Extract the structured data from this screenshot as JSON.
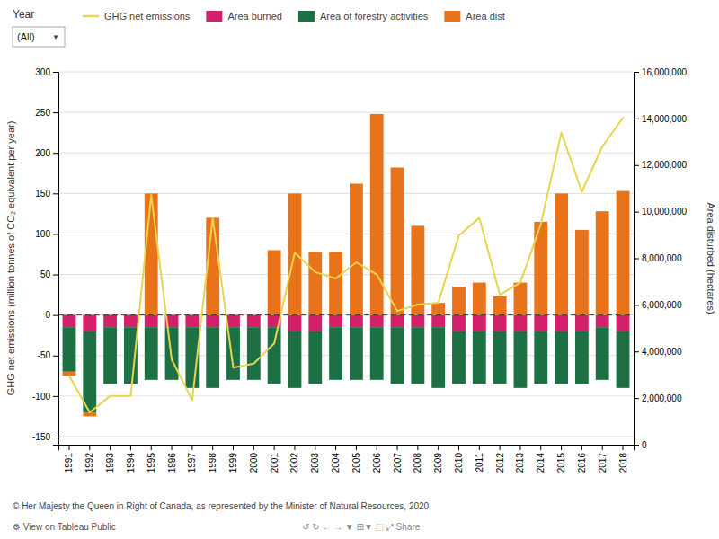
{
  "chart_data": {
    "type": "bar",
    "stacked": true,
    "grid": true,
    "legend": "top-left",
    "categories": [
      "1991",
      "1992",
      "1993",
      "1994",
      "1995",
      "1996",
      "1997",
      "1998",
      "1999",
      "2000",
      "2001",
      "2002",
      "2003",
      "2004",
      "2005",
      "2006",
      "2007",
      "2008",
      "2009",
      "2010",
      "2011",
      "2012",
      "2013",
      "2014",
      "2015",
      "2016",
      "2017",
      "2018"
    ],
    "series": [
      {
        "name": "GHG net emissions",
        "type": "line",
        "color": "#e8d44d",
        "values": [
          -75,
          -120,
          -100,
          -100,
          148,
          -55,
          -105,
          120,
          -65,
          -60,
          -35,
          77,
          53,
          45,
          65,
          50,
          5,
          13,
          15,
          98,
          120,
          25,
          40,
          112,
          225,
          152,
          208,
          243
        ]
      },
      {
        "name": "Area burned",
        "type": "bar",
        "color": "#d41f6b",
        "values": [
          -15,
          -20,
          -15,
          -15,
          -15,
          -15,
          -15,
          -15,
          -15,
          -15,
          -15,
          -20,
          -20,
          -15,
          -15,
          -15,
          -15,
          -15,
          -15,
          -20,
          -20,
          -20,
          -20,
          -20,
          -20,
          -20,
          -15,
          -20
        ]
      },
      {
        "name": "Area of forestry activities",
        "type": "bar",
        "color": "#1d7044",
        "values": [
          -55,
          -100,
          -70,
          -70,
          -65,
          -65,
          -75,
          -75,
          -65,
          -65,
          -70,
          -70,
          -65,
          -65,
          -65,
          -65,
          -70,
          -70,
          -75,
          -65,
          -65,
          -65,
          -70,
          -65,
          -65,
          -65,
          -65,
          -70
        ]
      },
      {
        "name": "Area dist",
        "type": "bar",
        "color": "#e8731a",
        "values": [
          -5,
          -5,
          0,
          0,
          0,
          0,
          0,
          0,
          0,
          0,
          0,
          0,
          0,
          0,
          0,
          0,
          0,
          0,
          0,
          0,
          0,
          0,
          0,
          0,
          0,
          0,
          0,
          0
        ]
      },
      {
        "name": "Area dist",
        "type": "bar",
        "color": "#e8731a",
        "values": [
          0,
          0,
          0,
          0,
          150,
          0,
          0,
          120,
          0,
          0,
          80,
          150,
          78,
          78,
          162,
          248,
          182,
          110,
          15,
          35,
          40,
          23,
          40,
          115,
          150,
          105,
          128,
          153
        ]
      }
    ],
    "ylabel": "GHG net emissions (million tonnes of CO₂ equivalent per year)",
    "y2label": "Area disturbed (hectares)",
    "ylim": [
      -160,
      300
    ],
    "yticks": [
      -150,
      -100,
      -50,
      0,
      50,
      100,
      150,
      200,
      250,
      300
    ],
    "y2lim": [
      0,
      16000000
    ],
    "y2ticks": [
      0,
      {
        "value": 2000000,
        "label": "2,000,000"
      },
      {
        "value": 4000000,
        "label": "4,000,000"
      },
      {
        "value": 6000000,
        "label": "6,000,000"
      },
      {
        "value": 8000000,
        "label": "8,000,000"
      },
      {
        "value": 10000000,
        "label": "10,000,000"
      },
      {
        "value": 12000000,
        "label": "12,000,000"
      },
      {
        "value": 14000000,
        "label": "14,000,000"
      },
      {
        "value": 16000000,
        "label": "16,000,000"
      }
    ],
    "annotations": [
      "Year",
      "(All)",
      "▼",
      "© Her Majesty the Queen in Right of Canada, as represented by the Minister of Natural Resources, 2020",
      "⚙ View on Tableau Public",
      "↺   ↻   ←   →   ▼       ⊞▼   ⬚   ⤢  Share"
    ]
  }
}
